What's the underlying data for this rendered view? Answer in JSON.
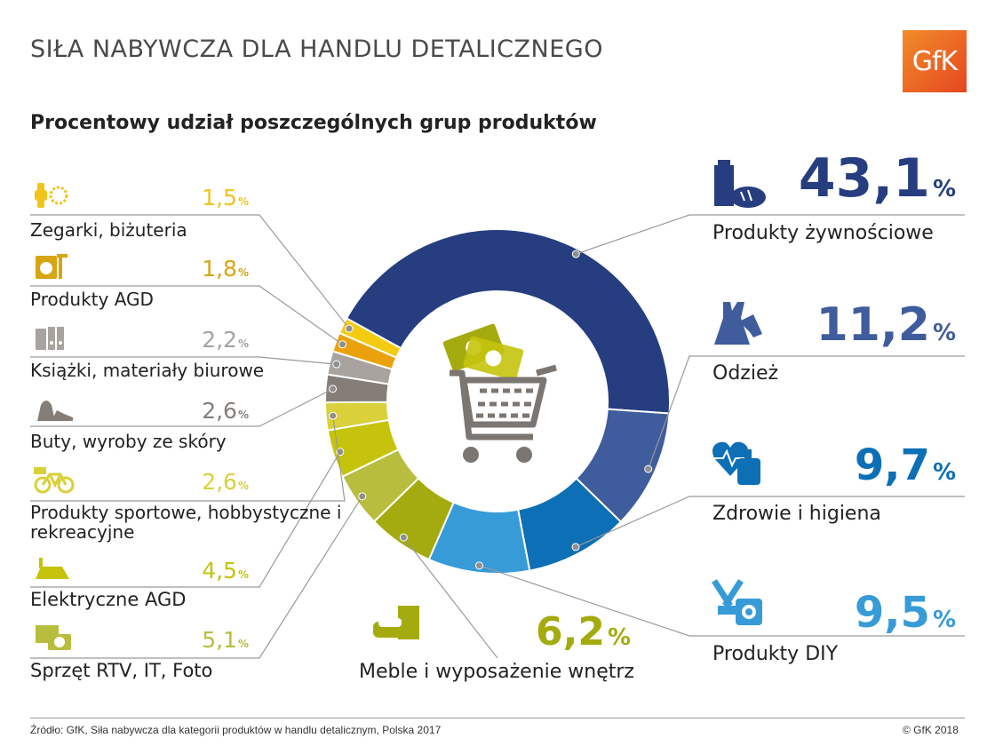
{
  "header": {
    "title": "SIŁA NABYWCZA DLA HANDLU DETALICZNEGO",
    "logo_text": "GfK"
  },
  "subtitle": "Procentowy udział poszczególnych grup produktów",
  "chart_data": {
    "type": "pie",
    "donut": true,
    "title": "",
    "unit": "%",
    "categories": [
      "Produkty żywnościowe",
      "Odzież",
      "Zdrowie i higiena",
      "Produkty DIY",
      "Meble i wyposażenie wnętrz",
      "Sprzęt RTV, IT, Foto",
      "Elektryczne AGD",
      "Produkty sportowe, hobbystyczne i rekreacyjne",
      "Buty, wyroby ze skóry",
      "Książki, materiały biurowe",
      "Produkty AGD",
      "Zegarki, biżuteria"
    ],
    "values": [
      43.1,
      11.2,
      9.7,
      9.5,
      6.2,
      5.1,
      4.5,
      2.6,
      2.6,
      2.2,
      1.8,
      1.5
    ],
    "value_labels": [
      "43,1",
      "11,2",
      "9,7",
      "9,5",
      "6,2",
      "5,1",
      "4,5",
      "2,6",
      "2,6",
      "2,2",
      "1,8",
      "1,5"
    ],
    "colors": [
      "#263e80",
      "#3f5c9c",
      "#0d6fb5",
      "#379bd8",
      "#a4ab0e",
      "#b8bd3e",
      "#c5c30c",
      "#d9d03a",
      "#857e78",
      "#a8a39e",
      "#eaa20c",
      "#f3cc12"
    ],
    "label_colors": [
      "#263e80",
      "#3f5c9c",
      "#0d6fb5",
      "#379bd8",
      "#a4ab0e",
      "#b8bd3e",
      "#c5c30c",
      "#d9d03a",
      "#857e78",
      "#a8a39e",
      "#d8a512",
      "#f0c41a"
    ]
  },
  "icons": {
    "food": "food-icon",
    "clothing": "clothing-icon",
    "health": "health-icon",
    "diy": "diy-icon",
    "furniture": "furniture-icon",
    "rtv": "camera-icon",
    "electric": "iron-icon",
    "sport": "bicycle-icon",
    "shoes": "shoes-icon",
    "books": "books-icon",
    "agd": "washing-machine-icon",
    "watches": "watch-icon",
    "center": "shopping-cart-icon"
  },
  "footer": {
    "source": "Źródło: GfK, Siła nabywcza dla kategorii produktów w handlu detalicznym, Polska 2017",
    "copyright": "© GfK 2018"
  }
}
